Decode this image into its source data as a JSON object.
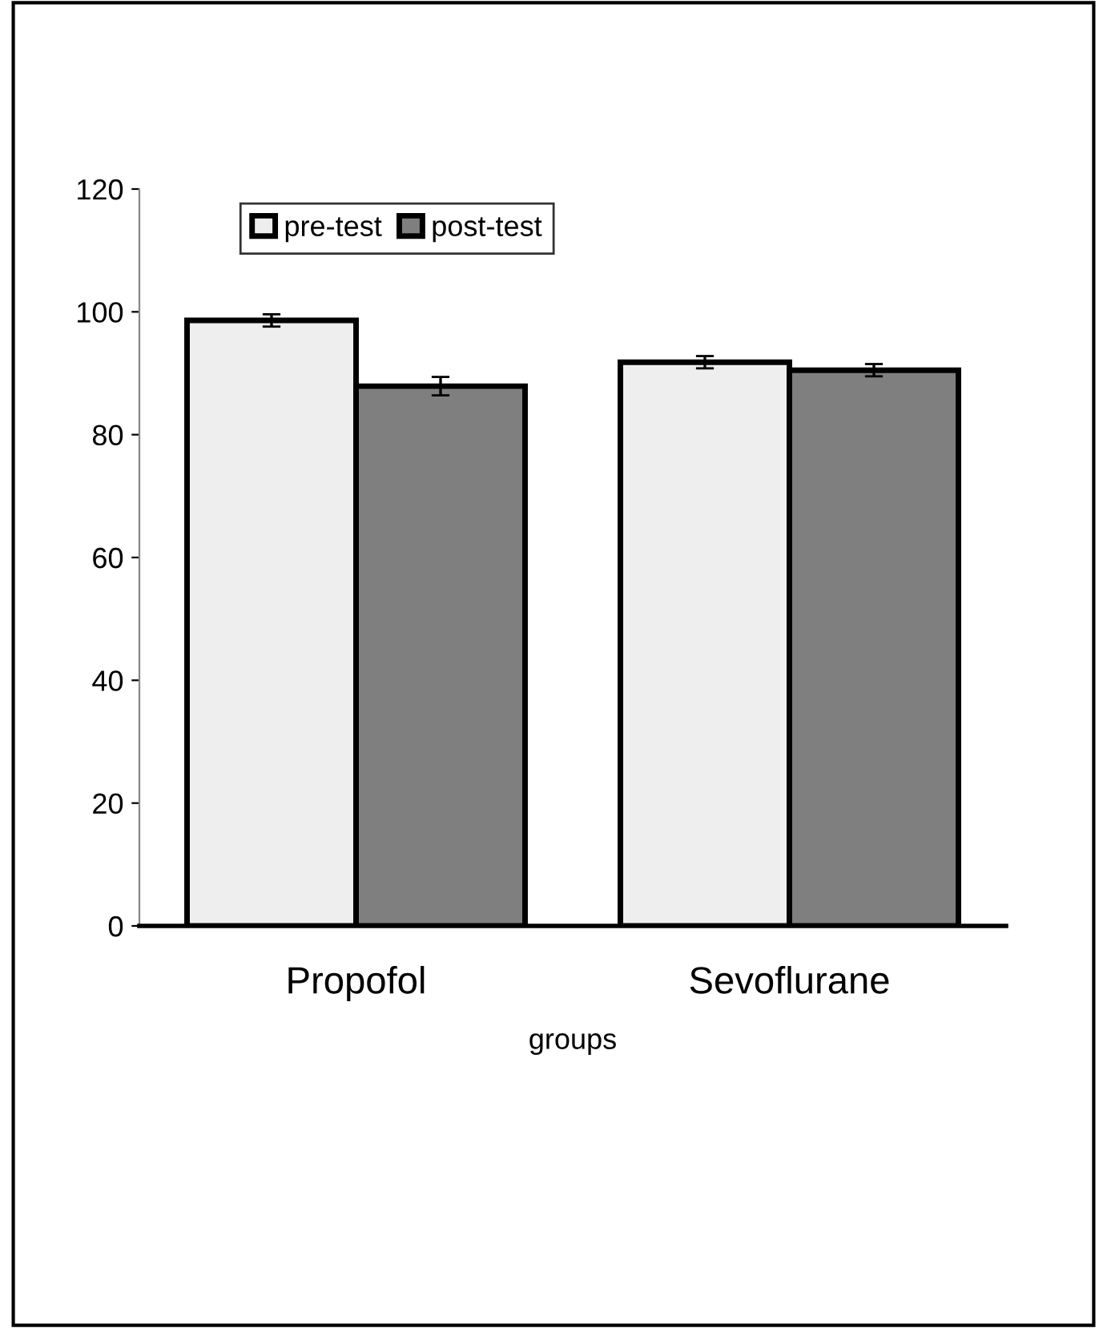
{
  "chart_data": {
    "type": "bar",
    "xlabel": "groups",
    "categories": [
      "Propofol",
      "Sevoflurane"
    ],
    "series": [
      {
        "name": "pre-test",
        "color": "#eeeeee",
        "values": [
          98.6,
          91.8
        ],
        "errors": [
          1,
          1
        ]
      },
      {
        "name": "post-test",
        "color": "#7f7f7f",
        "values": [
          87.9,
          90.5
        ],
        "errors": [
          1.5,
          1
        ]
      }
    ],
    "ylim": [
      0,
      120
    ],
    "yticks": [
      0,
      20,
      40,
      60,
      80,
      100,
      120
    ],
    "grid": false,
    "legend": "top left"
  }
}
